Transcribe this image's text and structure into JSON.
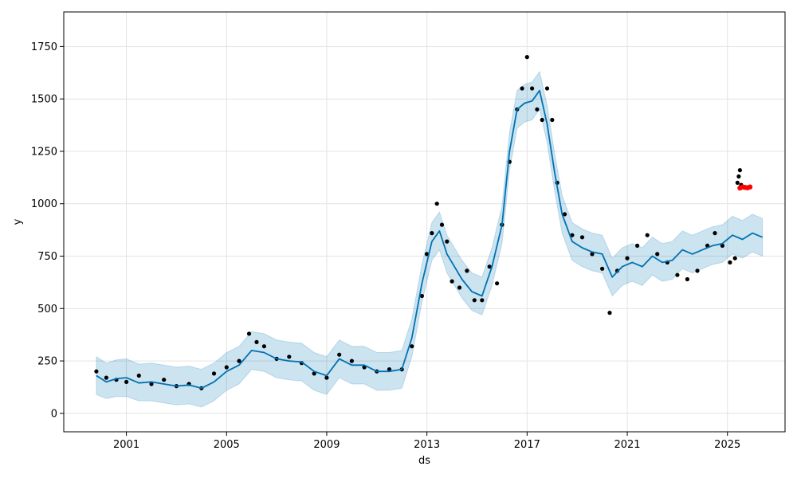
{
  "chart_data": {
    "type": "scatter",
    "title": "",
    "xlabel": "ds",
    "ylabel": "y",
    "xlim": [
      1998.5,
      2027.3
    ],
    "ylim": [
      -88,
      1915
    ],
    "grid": true,
    "xticks": [
      2001,
      2005,
      2009,
      2013,
      2017,
      2021,
      2025
    ],
    "xtick_labels": [
      "2001",
      "2005",
      "2009",
      "2013",
      "2017",
      "2021",
      "2025"
    ],
    "yticks": [
      0,
      250,
      500,
      750,
      1000,
      1250,
      1500,
      1750
    ],
    "ytick_labels": [
      "0",
      "250",
      "500",
      "750",
      "1000",
      "1250",
      "1500",
      "1750"
    ],
    "colors": {
      "points": "#000000",
      "forecast": "#0072B2",
      "band": "#0072B2",
      "highlight": "#ff0000",
      "grid": "#e3e3e3"
    },
    "forecast": {
      "x": [
        1999.8,
        2000.2,
        2000.6,
        2001.0,
        2001.5,
        2002.0,
        2002.5,
        2003.0,
        2003.5,
        2004.0,
        2004.5,
        2005.0,
        2005.5,
        2006.0,
        2006.5,
        2007.0,
        2007.5,
        2008.0,
        2008.5,
        2009.0,
        2009.5,
        2010.0,
        2010.5,
        2011.0,
        2011.5,
        2012.0,
        2012.4,
        2012.8,
        2013.2,
        2013.5,
        2013.8,
        2014.1,
        2014.4,
        2014.8,
        2015.2,
        2015.6,
        2016.0,
        2016.3,
        2016.6,
        2016.9,
        2017.2,
        2017.5,
        2017.8,
        2018.1,
        2018.4,
        2018.8,
        2019.2,
        2019.6,
        2020.0,
        2020.4,
        2020.8,
        2021.2,
        2021.6,
        2022.0,
        2022.4,
        2022.8,
        2023.2,
        2023.6,
        2024.0,
        2024.4,
        2024.8,
        2025.2,
        2025.6,
        2026.0,
        2026.4
      ],
      "yhat": [
        180,
        150,
        165,
        170,
        145,
        150,
        140,
        130,
        135,
        120,
        150,
        200,
        230,
        300,
        290,
        260,
        250,
        245,
        200,
        180,
        260,
        230,
        230,
        200,
        200,
        210,
        360,
        620,
        820,
        870,
        760,
        700,
        640,
        580,
        560,
        700,
        900,
        1250,
        1450,
        1480,
        1490,
        1540,
        1380,
        1150,
        950,
        820,
        790,
        770,
        760,
        650,
        700,
        720,
        700,
        750,
        720,
        730,
        780,
        760,
        780,
        800,
        810,
        850,
        830,
        860,
        840
      ],
      "lower": [
        90,
        70,
        80,
        80,
        60,
        60,
        50,
        40,
        45,
        30,
        60,
        110,
        140,
        210,
        200,
        170,
        160,
        155,
        110,
        90,
        170,
        140,
        140,
        110,
        110,
        120,
        270,
        530,
        730,
        780,
        670,
        610,
        550,
        490,
        470,
        610,
        810,
        1160,
        1360,
        1390,
        1400,
        1450,
        1290,
        1060,
        860,
        730,
        700,
        680,
        670,
        560,
        610,
        630,
        610,
        660,
        630,
        640,
        690,
        670,
        690,
        710,
        720,
        760,
        740,
        770,
        750
      ],
      "upper": [
        270,
        240,
        255,
        260,
        235,
        240,
        230,
        220,
        225,
        210,
        240,
        290,
        320,
        390,
        380,
        350,
        340,
        335,
        290,
        270,
        350,
        320,
        320,
        290,
        290,
        300,
        450,
        710,
        910,
        960,
        850,
        790,
        730,
        670,
        650,
        790,
        990,
        1340,
        1540,
        1570,
        1580,
        1630,
        1470,
        1240,
        1040,
        910,
        880,
        860,
        850,
        740,
        790,
        810,
        790,
        840,
        810,
        820,
        870,
        850,
        870,
        890,
        900,
        940,
        920,
        950,
        930
      ]
    },
    "observed": {
      "x": [
        1999.8,
        2000.2,
        2000.6,
        2001.0,
        2001.5,
        2002.0,
        2002.5,
        2003.0,
        2003.5,
        2004.0,
        2004.5,
        2005.0,
        2005.5,
        2005.9,
        2006.2,
        2006.5,
        2007.0,
        2007.5,
        2008.0,
        2008.5,
        2009.0,
        2009.5,
        2010.0,
        2010.5,
        2011.0,
        2011.5,
        2012.0,
        2012.4,
        2012.8,
        2013.0,
        2013.2,
        2013.4,
        2013.6,
        2013.8,
        2014.0,
        2014.3,
        2014.6,
        2014.9,
        2015.2,
        2015.5,
        2015.8,
        2016.0,
        2016.3,
        2016.6,
        2016.8,
        2017.0,
        2017.2,
        2017.4,
        2017.6,
        2017.8,
        2018.0,
        2018.2,
        2018.5,
        2018.8,
        2019.2,
        2019.6,
        2020.0,
        2020.3,
        2020.6,
        2021.0,
        2021.4,
        2021.8,
        2022.2,
        2022.6,
        2023.0,
        2023.4,
        2023.8,
        2024.2,
        2024.5,
        2024.8,
        2025.1,
        2025.3
      ],
      "y": [
        200,
        170,
        160,
        150,
        180,
        140,
        160,
        130,
        140,
        120,
        190,
        220,
        250,
        380,
        340,
        320,
        260,
        270,
        240,
        190,
        170,
        280,
        250,
        220,
        200,
        210,
        210,
        320,
        560,
        760,
        860,
        1000,
        900,
        820,
        630,
        600,
        680,
        540,
        540,
        700,
        620,
        900,
        1200,
        1450,
        1550,
        1700,
        1550,
        1450,
        1400,
        1550,
        1400,
        1100,
        950,
        850,
        840,
        760,
        690,
        480,
        680,
        740,
        800,
        850,
        760,
        720,
        660,
        640,
        680,
        800,
        860,
        800,
        720,
        740
      ]
    },
    "highlight": {
      "x": [
        2025.5,
        2025.6,
        2025.7,
        2025.8,
        2025.9
      ],
      "y": [
        1075,
        1080,
        1078,
        1076,
        1080
      ]
    },
    "top_cluster": {
      "x": [
        2025.4,
        2025.45,
        2025.5,
        2025.55
      ],
      "y": [
        1100,
        1130,
        1160,
        1090
      ]
    }
  }
}
